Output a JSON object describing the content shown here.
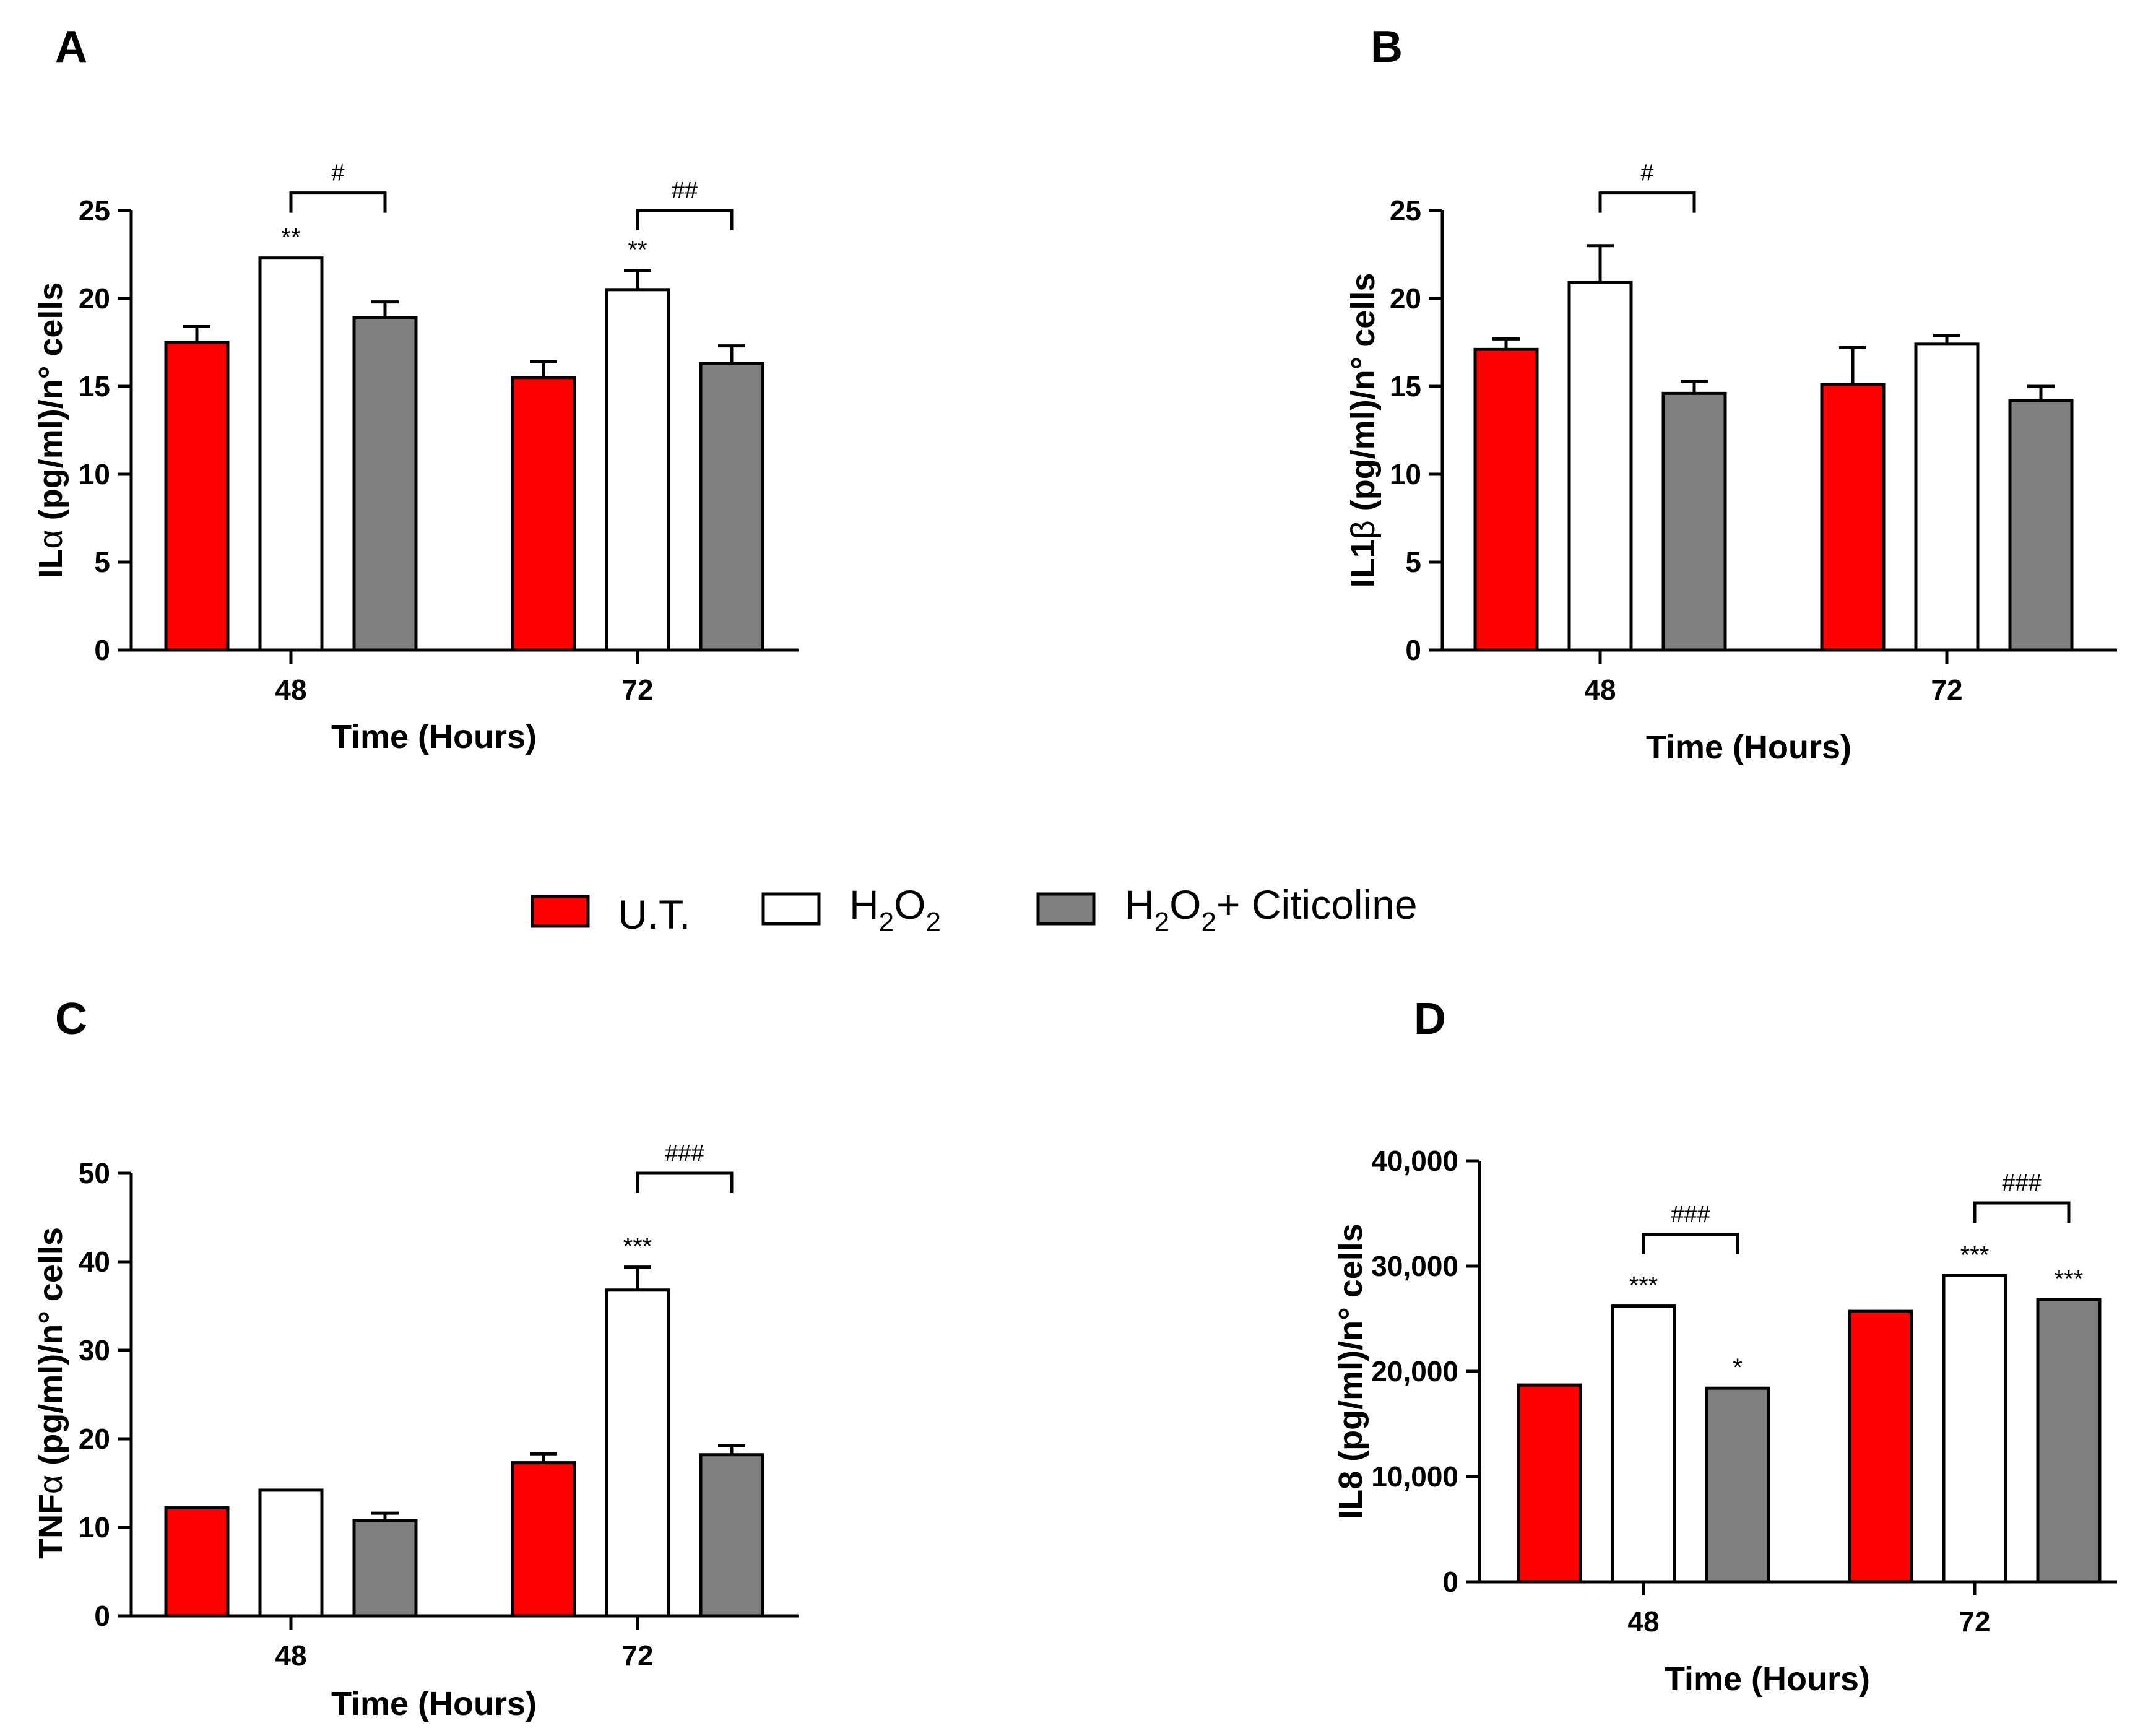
{
  "legend": {
    "items": [
      {
        "label": "U.T.",
        "color": "#ff0000"
      },
      {
        "label_main": "H",
        "label_sub1": "2",
        "label_mid": "O",
        "label_sub2": "2",
        "color": "#ffffff"
      },
      {
        "label_main": "H",
        "label_sub1": "2",
        "label_mid": "O",
        "label_sub2": "2",
        "label_tail": "+ Citicoline",
        "color": "#808080"
      }
    ]
  },
  "colors": {
    "ut": "#ff0000",
    "h2o2": "#ffffff",
    "citicoline": "#808080",
    "stroke": "#000000"
  },
  "chart_data": [
    {
      "id": "A",
      "letter": "A",
      "type": "bar",
      "ylabel_pre": "IL",
      "ylabel_greek": "α",
      "ylabel_post": " (pg/ml)/n° cells",
      "xlabel": "Time (Hours)",
      "ylim": [
        0,
        25
      ],
      "yticks": [
        0,
        5,
        10,
        15,
        20,
        25
      ],
      "ytick_labels": [
        "0",
        "5",
        "10",
        "15",
        "20",
        "25"
      ],
      "categories": [
        "48",
        "72"
      ],
      "series": [
        {
          "name": "U.T.",
          "values": [
            17.5,
            15.5
          ],
          "errors": [
            0.9,
            0.9
          ]
        },
        {
          "name": "H2O2",
          "values": [
            22.3,
            20.5
          ],
          "errors": [
            0,
            1.1
          ]
        },
        {
          "name": "H2O2+ Citicoline",
          "values": [
            18.9,
            16.3
          ],
          "errors": [
            0.9,
            1.0
          ]
        }
      ],
      "stars": [
        {
          "group": 0,
          "series": 1,
          "text": "**"
        },
        {
          "group": 1,
          "series": 1,
          "text": "**"
        }
      ],
      "brackets": [
        {
          "group": 0,
          "text": "#",
          "y": 26.0
        },
        {
          "group": 1,
          "text": "##",
          "y": 25.0
        }
      ]
    },
    {
      "id": "B",
      "letter": "B",
      "type": "bar",
      "ylabel_pre": "IL1",
      "ylabel_greek": "β",
      "ylabel_post": " (pg/ml)/n° cells",
      "xlabel": "Time (Hours)",
      "ylim": [
        0,
        25
      ],
      "yticks": [
        0,
        5,
        10,
        15,
        20,
        25
      ],
      "ytick_labels": [
        "0",
        "5",
        "10",
        "15",
        "20",
        "25"
      ],
      "categories": [
        "48",
        "72"
      ],
      "series": [
        {
          "name": "U.T.",
          "values": [
            17.1,
            15.1
          ],
          "errors": [
            0.6,
            2.1
          ]
        },
        {
          "name": "H2O2",
          "values": [
            20.9,
            17.4
          ],
          "errors": [
            2.1,
            0.5
          ]
        },
        {
          "name": "H2O2+ Citicoline",
          "values": [
            14.6,
            14.2
          ],
          "errors": [
            0.7,
            0.8
          ]
        }
      ],
      "stars": [],
      "brackets": [
        {
          "group": 0,
          "text": "#",
          "y": 26.0
        }
      ]
    },
    {
      "id": "C",
      "letter": "C",
      "type": "bar",
      "ylabel_pre": "TNF",
      "ylabel_greek": "α",
      "ylabel_post": " (pg/ml)/n° cells",
      "xlabel": "Time (Hours)",
      "ylim": [
        0,
        50
      ],
      "yticks": [
        0,
        10,
        20,
        30,
        40,
        50
      ],
      "ytick_labels": [
        "0",
        "10",
        "20",
        "30",
        "40",
        "50"
      ],
      "categories": [
        "48",
        "72"
      ],
      "series": [
        {
          "name": "U.T.",
          "values": [
            12.2,
            17.3
          ],
          "errors": [
            0,
            1.0
          ]
        },
        {
          "name": "H2O2",
          "values": [
            14.2,
            36.8
          ],
          "errors": [
            0,
            2.6
          ]
        },
        {
          "name": "H2O2+ Citicoline",
          "values": [
            10.8,
            18.2
          ],
          "errors": [
            0.8,
            1.0
          ]
        }
      ],
      "stars": [
        {
          "group": 1,
          "series": 1,
          "text": "***"
        }
      ],
      "brackets": [
        {
          "group": 1,
          "text": "###",
          "y": 50.0
        }
      ]
    },
    {
      "id": "D",
      "letter": "D",
      "type": "bar",
      "ylabel_pre": "IL8",
      "ylabel_greek": "",
      "ylabel_post": " (pg/ml)/n° cells",
      "xlabel": "Time (Hours)",
      "ylim": [
        0,
        40000
      ],
      "yticks": [
        0,
        10000,
        20000,
        30000,
        40000
      ],
      "ytick_labels": [
        "0",
        "10,000",
        "20,000",
        "30,000",
        "40,000"
      ],
      "categories": [
        "48",
        "72"
      ],
      "series": [
        {
          "name": "U.T.",
          "values": [
            18700,
            25700
          ],
          "errors": [
            0,
            0
          ]
        },
        {
          "name": "H2O2",
          "values": [
            26200,
            29100
          ],
          "errors": [
            0,
            0
          ]
        },
        {
          "name": "H2O2+ Citicoline",
          "values": [
            18400,
            26800
          ],
          "errors": [
            0,
            0
          ]
        }
      ],
      "stars": [
        {
          "group": 0,
          "series": 1,
          "text": "***"
        },
        {
          "group": 0,
          "series": 2,
          "text": "*"
        },
        {
          "group": 1,
          "series": 1,
          "text": "***"
        },
        {
          "group": 1,
          "series": 2,
          "text": "***"
        }
      ],
      "brackets": [
        {
          "group": 0,
          "text": "###",
          "y": 33000
        },
        {
          "group": 1,
          "text": "###",
          "y": 36000
        }
      ]
    }
  ]
}
